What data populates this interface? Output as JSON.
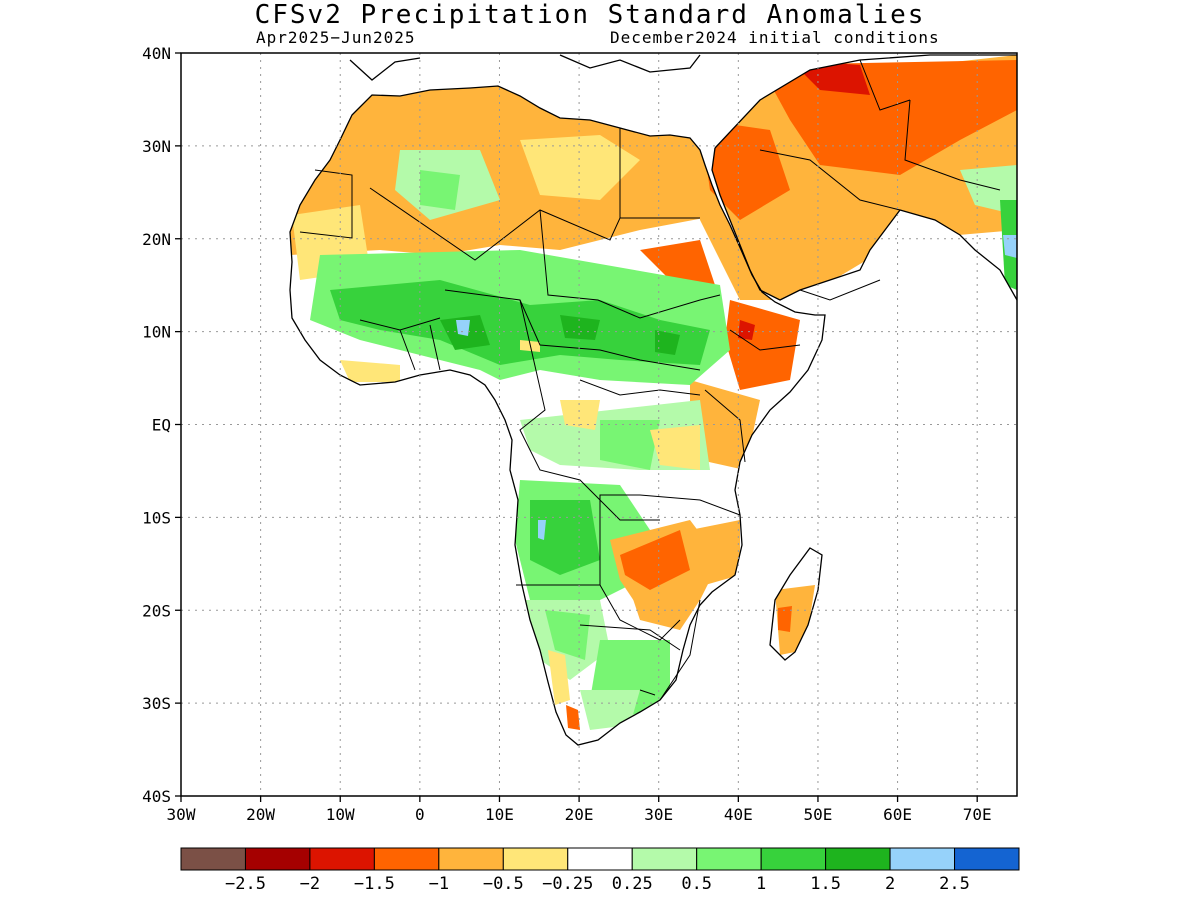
{
  "title": "CFSv2 Precipitation Standard Anomalies",
  "valid_period": "Apr2025−Jun2025",
  "initial_conditions": "December2024 initial conditions",
  "map": {
    "lon_range": [
      -30,
      75
    ],
    "lat_range": [
      -40,
      40
    ],
    "lat_ticks": [
      "40N",
      "30N",
      "20N",
      "10N",
      "EQ",
      "10S",
      "20S",
      "30S",
      "40S"
    ],
    "lon_ticks": [
      "30W",
      "20W",
      "10W",
      "0",
      "10E",
      "20E",
      "30E",
      "40E",
      "50E",
      "60E",
      "70E"
    ],
    "gridlines": "dotted"
  },
  "colorbar": {
    "labels": [
      "−2.5",
      "−2",
      "−1.5",
      "−1",
      "−0.5",
      "−0.25",
      "0.25",
      "0.5",
      "1",
      "1.5",
      "2",
      "2.5"
    ],
    "colors": [
      "#7b5046",
      "#a50000",
      "#dc1400",
      "#ff6400",
      "#ffb43c",
      "#ffe678",
      "#ffffff",
      "#b4faaa",
      "#78f573",
      "#37d23c",
      "#1eb41e",
      "#96d2fa",
      "#1464d2"
    ]
  },
  "colors": {
    "ocean": "#ffffff",
    "neutral": "#ffffff",
    "dry_light": "#ffe678",
    "dry": "#ffb43c",
    "dry_strong": "#ff6400",
    "dry_very": "#dc1400",
    "wet_light": "#b4faaa",
    "wet": "#78f573",
    "wet_strong": "#37d23c",
    "wet_very": "#1eb41e",
    "wet_extreme": "#96d2fa"
  }
}
